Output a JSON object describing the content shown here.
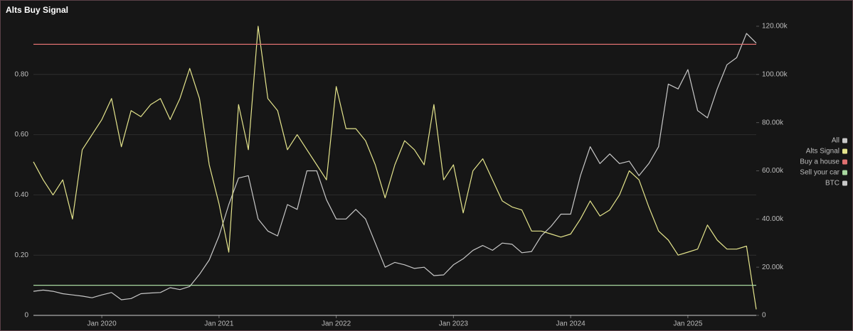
{
  "chart_data": {
    "type": "line",
    "title": "Alts Buy Signal",
    "x": [
      "2019-06",
      "2019-07",
      "2019-08",
      "2019-09",
      "2019-10",
      "2019-11",
      "2019-12",
      "2020-01",
      "2020-02",
      "2020-03",
      "2020-04",
      "2020-05",
      "2020-06",
      "2020-07",
      "2020-08",
      "2020-09",
      "2020-10",
      "2020-11",
      "2020-12",
      "2021-01",
      "2021-02",
      "2021-03",
      "2021-04",
      "2021-05",
      "2021-06",
      "2021-07",
      "2021-08",
      "2021-09",
      "2021-10",
      "2021-11",
      "2021-12",
      "2022-01",
      "2022-02",
      "2022-03",
      "2022-04",
      "2022-05",
      "2022-06",
      "2022-07",
      "2022-08",
      "2022-09",
      "2022-10",
      "2022-11",
      "2022-12",
      "2023-01",
      "2023-02",
      "2023-03",
      "2023-04",
      "2023-05",
      "2023-06",
      "2023-07",
      "2023-08",
      "2023-09",
      "2023-10",
      "2023-11",
      "2023-12",
      "2024-01",
      "2024-02",
      "2024-03",
      "2024-04",
      "2024-05",
      "2024-06",
      "2024-07",
      "2024-08",
      "2024-09",
      "2024-10",
      "2024-11",
      "2024-12",
      "2025-01",
      "2025-02",
      "2025-03",
      "2025-04",
      "2025-05",
      "2025-06",
      "2025-07",
      "2025-08"
    ],
    "series": [
      {
        "name": "Alts Signal",
        "color": "#e4e48c",
        "axis": "y",
        "values": [
          0.51,
          0.45,
          0.4,
          0.45,
          0.32,
          0.55,
          0.6,
          0.65,
          0.72,
          0.56,
          0.68,
          0.66,
          0.7,
          0.72,
          0.65,
          0.72,
          0.82,
          0.72,
          0.5,
          0.37,
          0.21,
          0.7,
          0.55,
          0.96,
          0.72,
          0.68,
          0.55,
          0.6,
          0.55,
          0.5,
          0.45,
          0.76,
          0.62,
          0.62,
          0.58,
          0.5,
          0.39,
          0.5,
          0.58,
          0.55,
          0.5,
          0.7,
          0.45,
          0.5,
          0.34,
          0.48,
          0.52,
          0.45,
          0.38,
          0.36,
          0.35,
          0.28,
          0.28,
          0.27,
          0.26,
          0.27,
          0.32,
          0.38,
          0.33,
          0.35,
          0.4,
          0.48,
          0.45,
          0.36,
          0.28,
          0.25,
          0.2,
          0.21,
          0.22,
          0.3,
          0.25,
          0.22,
          0.22,
          0.23,
          0.02
        ]
      },
      {
        "name": "Buy a house",
        "color": "#e07070",
        "axis": "y",
        "level": 0.9
      },
      {
        "name": "Sell your car",
        "color": "#a8d8a0",
        "axis": "y",
        "level": 0.1
      },
      {
        "name": "BTC",
        "color": "#c8c8c8",
        "axis": "y2",
        "values": [
          10000,
          10500,
          10000,
          9000,
          8500,
          8000,
          7300,
          8500,
          9500,
          6500,
          7000,
          9000,
          9300,
          9500,
          11500,
          10700,
          12000,
          17000,
          23000,
          33000,
          46000,
          57000,
          58000,
          40000,
          35000,
          33000,
          46000,
          44000,
          60000,
          60000,
          48000,
          40000,
          40000,
          44000,
          40000,
          30000,
          20000,
          22000,
          21000,
          19500,
          20000,
          16500,
          16800,
          21000,
          23500,
          27000,
          29000,
          27000,
          30000,
          29500,
          26000,
          26500,
          33000,
          37000,
          42000,
          42000,
          58000,
          70000,
          63000,
          67000,
          63000,
          64000,
          58000,
          63000,
          70000,
          96000,
          94000,
          102000,
          85000,
          82000,
          94000,
          104000,
          107000,
          117000,
          113000
        ]
      }
    ],
    "legend": {
      "position": "right",
      "all_label": "All",
      "all_color": "#c8c8c8"
    },
    "xlim": [
      "2019-06",
      "2025-08"
    ],
    "xticks": [
      {
        "value": "2020-01",
        "label": "Jan 2020"
      },
      {
        "value": "2021-01",
        "label": "Jan 2021"
      },
      {
        "value": "2022-01",
        "label": "Jan 2022"
      },
      {
        "value": "2023-01",
        "label": "Jan 2023"
      },
      {
        "value": "2024-01",
        "label": "Jan 2024"
      },
      {
        "value": "2025-01",
        "label": "Jan 2025"
      }
    ],
    "ylim": [
      0,
      1.0
    ],
    "yticks": [
      0,
      {
        "value": 0.2,
        "label": "0.20"
      },
      {
        "value": 0.4,
        "label": "0.40"
      },
      {
        "value": 0.6,
        "label": "0.60"
      },
      {
        "value": 0.8,
        "label": "0.80"
      }
    ],
    "y2lim": [
      0,
      125000
    ],
    "y2ticks": [
      0,
      {
        "value": 20000,
        "label": "20.00k"
      },
      {
        "value": 40000,
        "label": "40.00k"
      },
      {
        "value": 60000,
        "label": "60.00k"
      },
      {
        "value": 80000,
        "label": "80.00k"
      },
      {
        "value": 100000,
        "label": "100.00k"
      },
      {
        "value": 120000,
        "label": "120.00k"
      }
    ],
    "grid": true
  }
}
